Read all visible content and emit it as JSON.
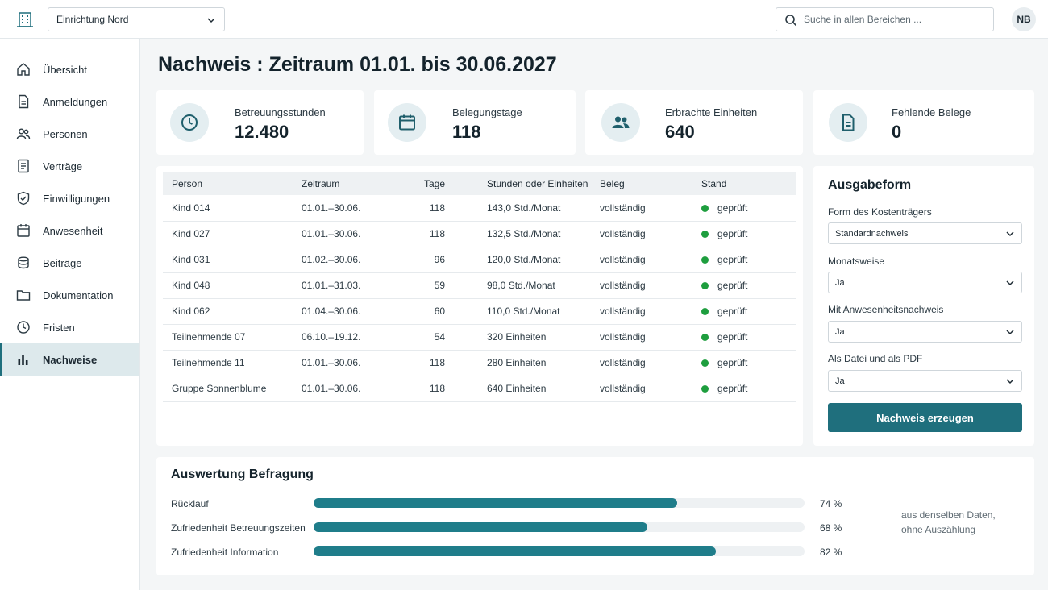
{
  "header": {
    "org_select_value": "Einrichtung Nord",
    "search_placeholder": "Suche in allen Bereichen ...",
    "avatar_initials": "NB"
  },
  "sidebar": {
    "items": [
      {
        "label": "Übersicht",
        "icon": "home-icon"
      },
      {
        "label": "Anmeldungen",
        "icon": "document-icon"
      },
      {
        "label": "Personen",
        "icon": "people-icon"
      },
      {
        "label": "Verträge",
        "icon": "contract-icon"
      },
      {
        "label": "Einwilligungen",
        "icon": "shield-check-icon"
      },
      {
        "label": "Anwesenheit",
        "icon": "calendar-icon"
      },
      {
        "label": "Beiträge",
        "icon": "coins-icon"
      },
      {
        "label": "Dokumentation",
        "icon": "folder-icon"
      },
      {
        "label": "Fristen",
        "icon": "clock-icon"
      },
      {
        "label": "Nachweise",
        "icon": "bar-chart-icon",
        "active": true
      }
    ]
  },
  "page": {
    "title": "Nachweis : Zeitraum 01.01. bis 30.06.2027"
  },
  "stats": [
    {
      "label": "Betreuungsstunden",
      "value": "12.480",
      "icon": "clock-icon"
    },
    {
      "label": "Belegungstage",
      "value": "118",
      "icon": "calendar-icon"
    },
    {
      "label": "Erbrachte Einheiten",
      "value": "640",
      "icon": "people-icon"
    },
    {
      "label": "Fehlende Belege",
      "value": "0",
      "icon": "document-icon"
    }
  ],
  "table": {
    "headers": [
      "Person",
      "Zeitraum",
      "Tage",
      "Stunden oder Einheiten",
      "Beleg",
      "Stand"
    ],
    "rows": [
      [
        "Kind 014",
        "01.01.–30.06.",
        "118",
        "143,0 Std./Monat",
        "vollständig",
        "geprüft"
      ],
      [
        "Kind 027",
        "01.01.–30.06.",
        "118",
        "132,5 Std./Monat",
        "vollständig",
        "geprüft"
      ],
      [
        "Kind 031",
        "01.02.–30.06.",
        "96",
        "120,0 Std./Monat",
        "vollständig",
        "geprüft"
      ],
      [
        "Kind 048",
        "01.01.–31.03.",
        "59",
        "98,0 Std./Monat",
        "vollständig",
        "geprüft"
      ],
      [
        "Kind 062",
        "01.04.–30.06.",
        "60",
        "110,0 Std./Monat",
        "vollständig",
        "geprüft"
      ],
      [
        "Teilnehmende 07",
        "06.10.–19.12.",
        "54",
        "320 Einheiten",
        "vollständig",
        "geprüft"
      ],
      [
        "Teilnehmende 11",
        "01.01.–30.06.",
        "118",
        "280 Einheiten",
        "vollständig",
        "geprüft"
      ],
      [
        "Gruppe Sonnenblume",
        "01.01.–30.06.",
        "118",
        "640 Einheiten",
        "vollständig",
        "geprüft"
      ]
    ],
    "status_color": "#1e9e3e"
  },
  "ausgabeform": {
    "title": "Ausgabeform",
    "fields": [
      {
        "label": "Form des Kostenträgers",
        "value": "Standardnachweis"
      },
      {
        "label": "Monatsweise",
        "value": "Ja"
      },
      {
        "label": "Mit Anwesenheitsnachweis",
        "value": "Ja"
      },
      {
        "label": "Als Datei und als PDF",
        "value": "Ja"
      }
    ],
    "button_label": "Nachweis erzeugen"
  },
  "befragung": {
    "title": "Auswertung Befragung",
    "rows": [
      {
        "label": "Rücklauf",
        "percent": 74,
        "percent_label": "74 %"
      },
      {
        "label": "Zufriedenheit Betreuungszeiten",
        "percent": 68,
        "percent_label": "68 %"
      },
      {
        "label": "Zufriedenheit Information",
        "percent": 82,
        "percent_label": "82 %"
      }
    ],
    "note_line1": "aus denselben Daten,",
    "note_line2": "ohne Auszählung"
  },
  "colors": {
    "accent": "#1f6f7d",
    "bar_fill": "#1f7d8a",
    "status_ok": "#1e9e3e"
  }
}
